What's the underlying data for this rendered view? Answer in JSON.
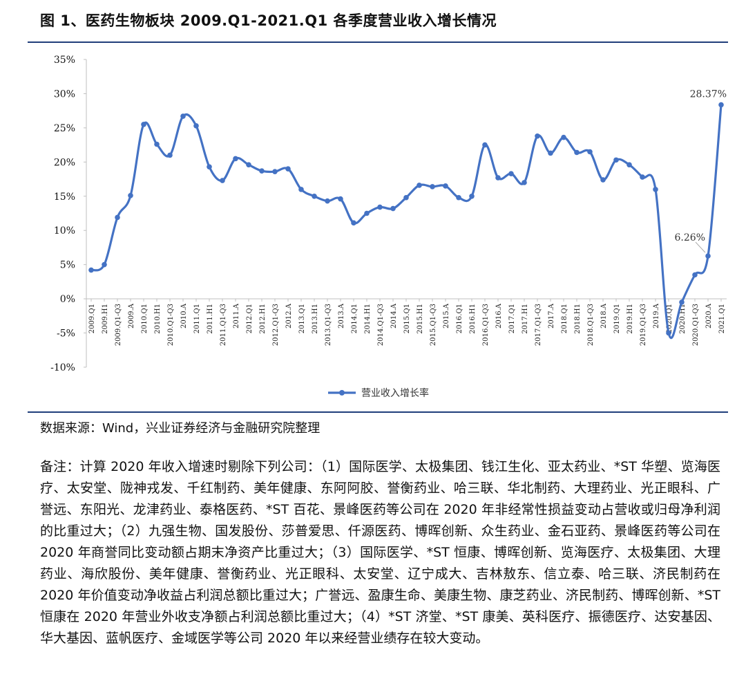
{
  "page": {
    "title": "图 1、医药生物板块 2009.Q1-2021.Q1 各季度营业收入增长情况",
    "source": "数据来源：Wind，兴业证券经济与金融研究院整理",
    "note": "备注：计算 2020 年收入增速时剔除下列公司：（1）国际医学、太极集团、钱江生化、亚太药业、*ST 华塑、览海医疗、太安堂、陇神戎发、千红制药、美年健康、东阿阿胶、誉衡药业、哈三联、华北制药、大理药业、光正眼科、广誉远、东阳光、龙津药业、泰格医药、*ST 百花、景峰医药等公司在 2020 年非经常性损益变动占营收或归母净利润的比重过大；（2）九强生物、国发股份、莎普爱思、仟源医药、博晖创新、众生药业、金石亚药、景峰医药等公司在 2020 年商誉同比变动额占期末净资产比重过大；（3）国际医学、*ST 恒康、博晖创新、览海医疗、太极集团、大理药业、海欣股份、美年健康、誉衡药业、光正眼科、太安堂、辽宁成大、吉林敖东、信立泰、哈三联、济民制药在 2020 年价值变动净收益占利润总额比重过大；广誉远、盈康生命、美康生物、康芝药业、济民制药、博晖创新、*ST 恒康在 2020 年营业外收支净额占利润总额比重过大；（4）*ST 济堂、*ST 康美、英科医疗、振德医疗、达安基因、华大基因、蓝帆医疗、金域医学等公司 2020 年以来经营业绩存在较大变动。"
  },
  "chart_data": {
    "type": "line",
    "title": "",
    "xlabel": "",
    "ylabel": "",
    "ylim": [
      -10,
      35
    ],
    "yticks": [
      35,
      30,
      25,
      20,
      15,
      10,
      5,
      0,
      -5,
      -10
    ],
    "ytick_labels": [
      "35%",
      "30%",
      "25%",
      "20%",
      "15%",
      "10%",
      "5%",
      "0%",
      "-5%",
      "-10%"
    ],
    "grid": false,
    "legend_position": "bottom",
    "line_color": "#4472c4",
    "categories": [
      "2009.Q1",
      "2009.H1",
      "2009.Q1-Q3",
      "2009.A",
      "2010.Q1",
      "2010.H1",
      "2010.Q1-Q3",
      "2010.A",
      "2011.Q1",
      "2011.H1",
      "2011.Q1-Q3",
      "2011.A",
      "2012.Q1",
      "2012.H1",
      "2012.Q1-Q3",
      "2012.A",
      "2013.Q1",
      "2013.H1",
      "2013.Q1-Q3",
      "2013.A",
      "2014.Q1",
      "2014.H1",
      "2014.Q1-Q3",
      "2014.A",
      "2015.Q1",
      "2015.H1",
      "2015.Q1-Q3",
      "2015.A",
      "2016.Q1",
      "2016.H1",
      "2016.Q1-Q3",
      "2016.A",
      "2017.Q1",
      "2017.H1",
      "2017.Q1-Q3",
      "2017.A",
      "2018.Q1",
      "2018.H1",
      "2018.Q1-Q3",
      "2018.A",
      "2019.Q1",
      "2019.H1",
      "2019.Q1-Q3",
      "2019.A",
      "2020.Q1",
      "2020.H1",
      "2020.Q1-Q3",
      "2020.A",
      "2021.Q1"
    ],
    "series": [
      {
        "name": "营业收入增长率",
        "values": [
          4.2,
          5.0,
          11.9,
          15.1,
          25.5,
          22.6,
          21.0,
          26.7,
          25.3,
          19.3,
          17.3,
          20.5,
          19.6,
          18.7,
          18.6,
          19.0,
          16.0,
          15.0,
          14.3,
          14.6,
          11.1,
          12.5,
          13.4,
          13.2,
          14.8,
          16.6,
          16.4,
          16.5,
          14.8,
          15.0,
          22.5,
          17.7,
          18.3,
          17.0,
          23.8,
          21.3,
          23.6,
          21.4,
          21.5,
          17.4,
          20.3,
          19.6,
          17.8,
          16.0,
          -5.0,
          -0.5,
          3.5,
          6.26,
          28.37
        ]
      }
    ],
    "annotations": [
      {
        "category": "2020.A",
        "label": "6.26%"
      },
      {
        "category": "2021.Q1",
        "label": "28.37%"
      }
    ]
  }
}
